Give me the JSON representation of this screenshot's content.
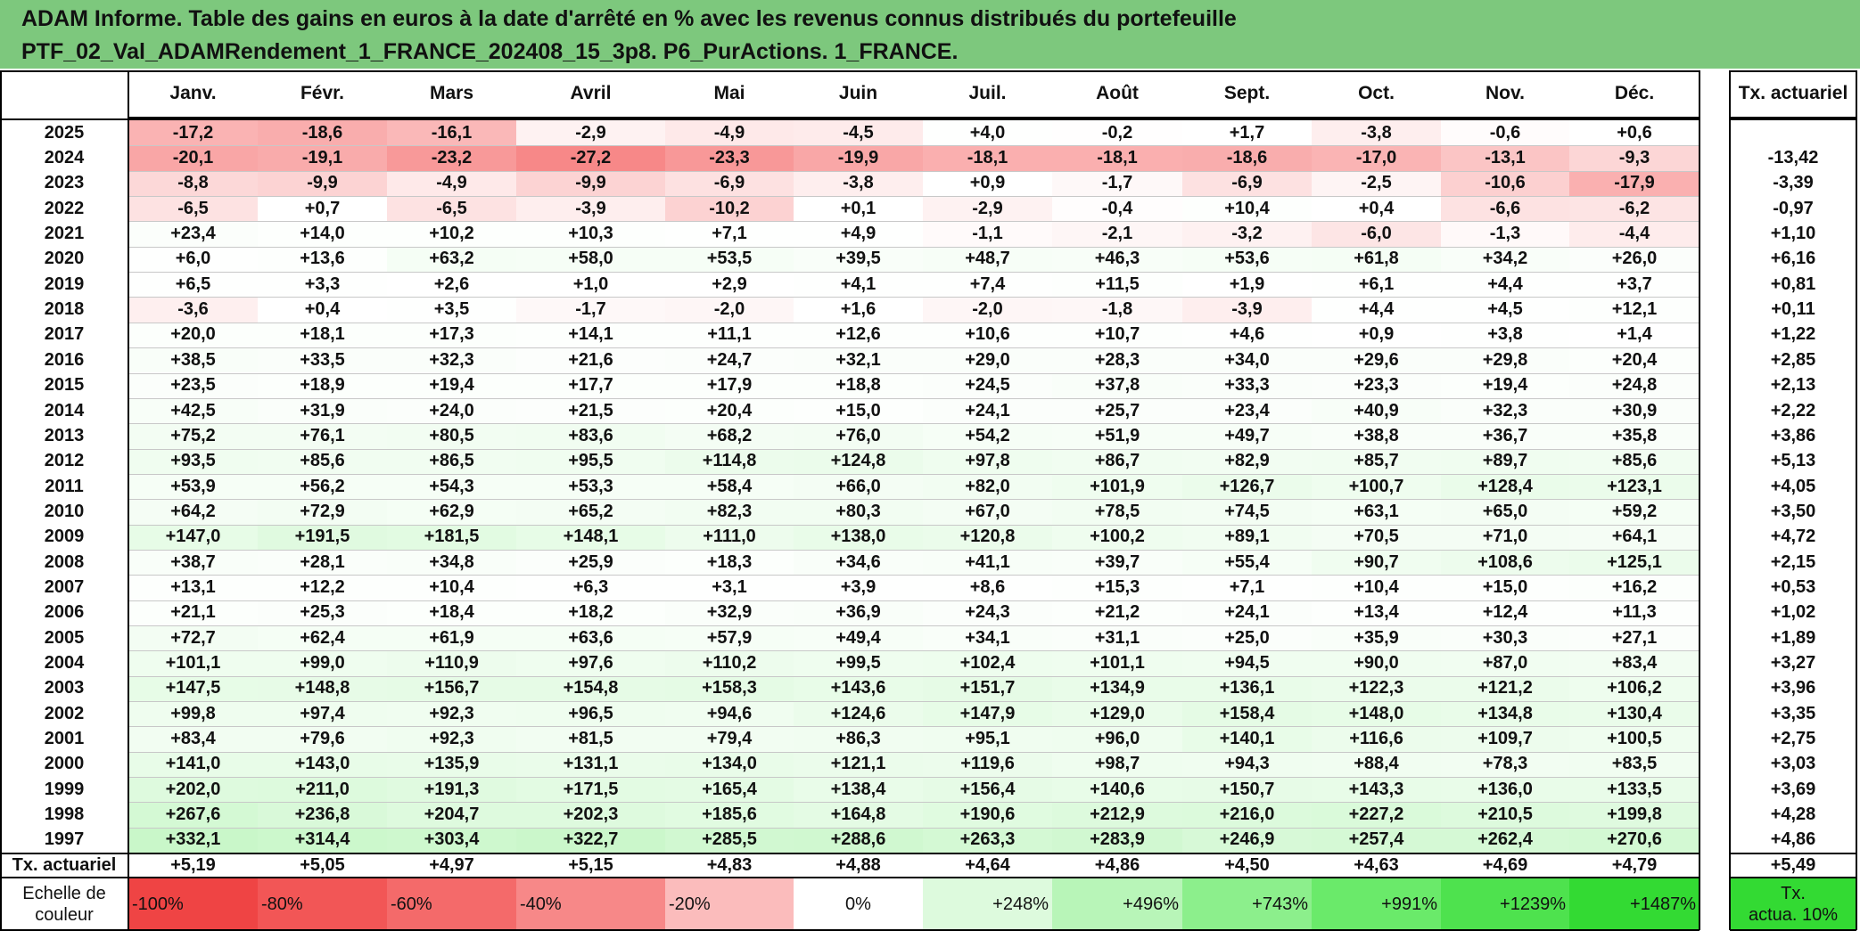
{
  "title": {
    "line1": "ADAM Informe. Table des gains en euros à la date d'arrêté en % avec les revenus connus distribués du portefeuille",
    "line2": "PTF_02_Val_ADAMRendement_1_FRANCE_202408_15_3p8. P6_PurActions. 1_FRANCE."
  },
  "months": [
    "Janv.",
    "Févr.",
    "Mars",
    "Avril",
    "Mai",
    "Juin",
    "Juil.",
    "Août",
    "Sept.",
    "Oct.",
    "Nov.",
    "Déc."
  ],
  "tx_header": "Tx. actuariel",
  "rows": [
    {
      "year": "2025",
      "values": [
        "-17,2",
        "-18,6",
        "-16,1",
        "-2,9",
        "-4,9",
        "-4,5",
        "+4,0",
        "-0,2",
        "+1,7",
        "-3,8",
        "-0,6",
        "+0,6"
      ],
      "tx": ""
    },
    {
      "year": "2024",
      "values": [
        "-20,1",
        "-19,1",
        "-23,2",
        "-27,2",
        "-23,3",
        "-19,9",
        "-18,1",
        "-18,1",
        "-18,6",
        "-17,0",
        "-13,1",
        "-9,3"
      ],
      "tx": "-13,42"
    },
    {
      "year": "2023",
      "values": [
        "-8,8",
        "-9,9",
        "-4,9",
        "-9,9",
        "-6,9",
        "-3,8",
        "+0,9",
        "-1,7",
        "-6,9",
        "-2,5",
        "-10,6",
        "-17,9"
      ],
      "tx": "-3,39"
    },
    {
      "year": "2022",
      "values": [
        "-6,5",
        "+0,7",
        "-6,5",
        "-3,9",
        "-10,2",
        "+0,1",
        "-2,9",
        "-0,4",
        "+10,4",
        "+0,4",
        "-6,6",
        "-6,2"
      ],
      "tx": "-0,97"
    },
    {
      "year": "2021",
      "values": [
        "+23,4",
        "+14,0",
        "+10,2",
        "+10,3",
        "+7,1",
        "+4,9",
        "-1,1",
        "-2,1",
        "-3,2",
        "-6,0",
        "-1,3",
        "-4,4"
      ],
      "tx": "+1,10"
    },
    {
      "year": "2020",
      "values": [
        "+6,0",
        "+13,6",
        "+63,2",
        "+58,0",
        "+53,5",
        "+39,5",
        "+48,7",
        "+46,3",
        "+53,6",
        "+61,8",
        "+34,2",
        "+26,0"
      ],
      "tx": "+6,16"
    },
    {
      "year": "2019",
      "values": [
        "+6,5",
        "+3,3",
        "+2,6",
        "+1,0",
        "+2,9",
        "+4,1",
        "+7,4",
        "+11,5",
        "+1,9",
        "+6,1",
        "+4,4",
        "+3,7"
      ],
      "tx": "+0,81"
    },
    {
      "year": "2018",
      "values": [
        "-3,6",
        "+0,4",
        "+3,5",
        "-1,7",
        "-2,0",
        "+1,6",
        "-2,0",
        "-1,8",
        "-3,9",
        "+4,4",
        "+4,5",
        "+12,1"
      ],
      "tx": "+0,11"
    },
    {
      "year": "2017",
      "values": [
        "+20,0",
        "+18,1",
        "+17,3",
        "+14,1",
        "+11,1",
        "+12,6",
        "+10,6",
        "+10,7",
        "+4,6",
        "+0,9",
        "+3,8",
        "+1,4"
      ],
      "tx": "+1,22"
    },
    {
      "year": "2016",
      "values": [
        "+38,5",
        "+33,5",
        "+32,3",
        "+21,6",
        "+24,7",
        "+32,1",
        "+29,0",
        "+28,3",
        "+34,0",
        "+29,6",
        "+29,8",
        "+20,4"
      ],
      "tx": "+2,85"
    },
    {
      "year": "2015",
      "values": [
        "+23,5",
        "+18,9",
        "+19,4",
        "+17,7",
        "+17,9",
        "+18,8",
        "+24,5",
        "+37,8",
        "+33,3",
        "+23,3",
        "+19,4",
        "+24,8"
      ],
      "tx": "+2,13"
    },
    {
      "year": "2014",
      "values": [
        "+42,5",
        "+31,9",
        "+24,0",
        "+21,5",
        "+20,4",
        "+15,0",
        "+24,1",
        "+25,7",
        "+23,4",
        "+40,9",
        "+32,3",
        "+30,9"
      ],
      "tx": "+2,22"
    },
    {
      "year": "2013",
      "values": [
        "+75,2",
        "+76,1",
        "+80,5",
        "+83,6",
        "+68,2",
        "+76,0",
        "+54,2",
        "+51,9",
        "+49,7",
        "+38,8",
        "+36,7",
        "+35,8"
      ],
      "tx": "+3,86"
    },
    {
      "year": "2012",
      "values": [
        "+93,5",
        "+85,6",
        "+86,5",
        "+95,5",
        "+114,8",
        "+124,8",
        "+97,8",
        "+86,7",
        "+82,9",
        "+85,7",
        "+89,7",
        "+85,6"
      ],
      "tx": "+5,13"
    },
    {
      "year": "2011",
      "values": [
        "+53,9",
        "+56,2",
        "+54,3",
        "+53,3",
        "+58,4",
        "+66,0",
        "+82,0",
        "+101,9",
        "+126,7",
        "+100,7",
        "+128,4",
        "+123,1"
      ],
      "tx": "+4,05"
    },
    {
      "year": "2010",
      "values": [
        "+64,2",
        "+72,9",
        "+62,9",
        "+65,2",
        "+82,3",
        "+80,3",
        "+67,0",
        "+78,5",
        "+74,5",
        "+63,1",
        "+65,0",
        "+59,2"
      ],
      "tx": "+3,50"
    },
    {
      "year": "2009",
      "values": [
        "+147,0",
        "+191,5",
        "+181,5",
        "+148,1",
        "+111,0",
        "+138,0",
        "+120,8",
        "+100,2",
        "+89,1",
        "+70,5",
        "+71,0",
        "+64,1"
      ],
      "tx": "+4,72"
    },
    {
      "year": "2008",
      "values": [
        "+38,7",
        "+28,1",
        "+34,8",
        "+25,9",
        "+18,3",
        "+34,6",
        "+41,1",
        "+39,7",
        "+55,4",
        "+90,7",
        "+108,6",
        "+125,1"
      ],
      "tx": "+2,15"
    },
    {
      "year": "2007",
      "values": [
        "+13,1",
        "+12,2",
        "+10,4",
        "+6,3",
        "+3,1",
        "+3,9",
        "+8,6",
        "+15,3",
        "+7,1",
        "+10,4",
        "+15,0",
        "+16,2"
      ],
      "tx": "+0,53"
    },
    {
      "year": "2006",
      "values": [
        "+21,1",
        "+25,3",
        "+18,4",
        "+18,2",
        "+32,9",
        "+36,9",
        "+24,3",
        "+21,2",
        "+24,1",
        "+13,4",
        "+12,4",
        "+11,3"
      ],
      "tx": "+1,02"
    },
    {
      "year": "2005",
      "values": [
        "+72,7",
        "+62,4",
        "+61,9",
        "+63,6",
        "+57,9",
        "+49,4",
        "+34,1",
        "+31,1",
        "+25,0",
        "+35,9",
        "+30,3",
        "+27,1"
      ],
      "tx": "+1,89"
    },
    {
      "year": "2004",
      "values": [
        "+101,1",
        "+99,0",
        "+110,9",
        "+97,6",
        "+110,2",
        "+99,5",
        "+102,4",
        "+101,1",
        "+94,5",
        "+90,0",
        "+87,0",
        "+83,4"
      ],
      "tx": "+3,27"
    },
    {
      "year": "2003",
      "values": [
        "+147,5",
        "+148,8",
        "+156,7",
        "+154,8",
        "+158,3",
        "+143,6",
        "+151,7",
        "+134,9",
        "+136,1",
        "+122,3",
        "+121,2",
        "+106,2"
      ],
      "tx": "+3,96"
    },
    {
      "year": "2002",
      "values": [
        "+99,8",
        "+97,4",
        "+92,3",
        "+96,5",
        "+94,6",
        "+124,6",
        "+147,9",
        "+129,0",
        "+158,4",
        "+148,0",
        "+134,8",
        "+130,4"
      ],
      "tx": "+3,35"
    },
    {
      "year": "2001",
      "values": [
        "+83,4",
        "+79,6",
        "+92,3",
        "+81,5",
        "+79,4",
        "+86,3",
        "+95,1",
        "+96,0",
        "+140,1",
        "+116,6",
        "+109,7",
        "+100,5"
      ],
      "tx": "+2,75"
    },
    {
      "year": "2000",
      "values": [
        "+141,0",
        "+143,0",
        "+135,9",
        "+131,1",
        "+134,0",
        "+121,1",
        "+119,6",
        "+98,7",
        "+94,3",
        "+88,4",
        "+78,3",
        "+83,5"
      ],
      "tx": "+3,03"
    },
    {
      "year": "1999",
      "values": [
        "+202,0",
        "+211,0",
        "+191,3",
        "+171,5",
        "+165,4",
        "+138,4",
        "+156,4",
        "+140,6",
        "+150,7",
        "+143,3",
        "+136,0",
        "+133,5"
      ],
      "tx": "+3,69"
    },
    {
      "year": "1998",
      "values": [
        "+267,6",
        "+236,8",
        "+204,7",
        "+202,3",
        "+185,6",
        "+164,8",
        "+190,6",
        "+212,9",
        "+216,0",
        "+227,2",
        "+210,5",
        "+199,8"
      ],
      "tx": "+4,28"
    },
    {
      "year": "1997",
      "values": [
        "+332,1",
        "+314,4",
        "+303,4",
        "+322,7",
        "+285,5",
        "+288,6",
        "+263,3",
        "+283,9",
        "+246,9",
        "+257,4",
        "+262,4",
        "+270,6"
      ],
      "tx": "+4,86"
    }
  ],
  "tx_row": {
    "label": "Tx. actuariel",
    "values": [
      "+5,19",
      "+5,05",
      "+4,97",
      "+5,15",
      "+4,83",
      "+4,88",
      "+4,64",
      "+4,86",
      "+4,50",
      "+4,63",
      "+4,69",
      "+4,79"
    ],
    "total": "+5,49"
  },
  "legend": {
    "label_line1": "Echelle de",
    "label_line2": "couleur",
    "items": [
      {
        "text": "-100%",
        "color": "#ef4444",
        "align": "left"
      },
      {
        "text": "-80%",
        "color": "#f25656",
        "align": "left"
      },
      {
        "text": "-60%",
        "color": "#f46a6a",
        "align": "left"
      },
      {
        "text": "-40%",
        "color": "#f78888",
        "align": "left"
      },
      {
        "text": "-20%",
        "color": "#fbbcbc",
        "align": "left"
      },
      {
        "text": "0%",
        "color": "#ffffff",
        "align": "center"
      },
      {
        "text": "+248%",
        "color": "#ddfadd",
        "align": "right"
      },
      {
        "text": "+496%",
        "color": "#b8f5b8",
        "align": "right"
      },
      {
        "text": "+743%",
        "color": "#8cef8c",
        "align": "right"
      },
      {
        "text": "+991%",
        "color": "#6aea6a",
        "align": "right"
      },
      {
        "text": "+1239%",
        "color": "#4ee24e",
        "align": "right"
      },
      {
        "text": "+1487%",
        "color": "#33da33",
        "align": "right"
      }
    ],
    "tx_line1": "Tx.",
    "tx_line2": "actua. 10%",
    "tx_color": "#33da33"
  },
  "colors": {
    "title_bg": "#7dc87d",
    "neg_max": "#f78888",
    "pos_max": "#c8f7c8"
  }
}
